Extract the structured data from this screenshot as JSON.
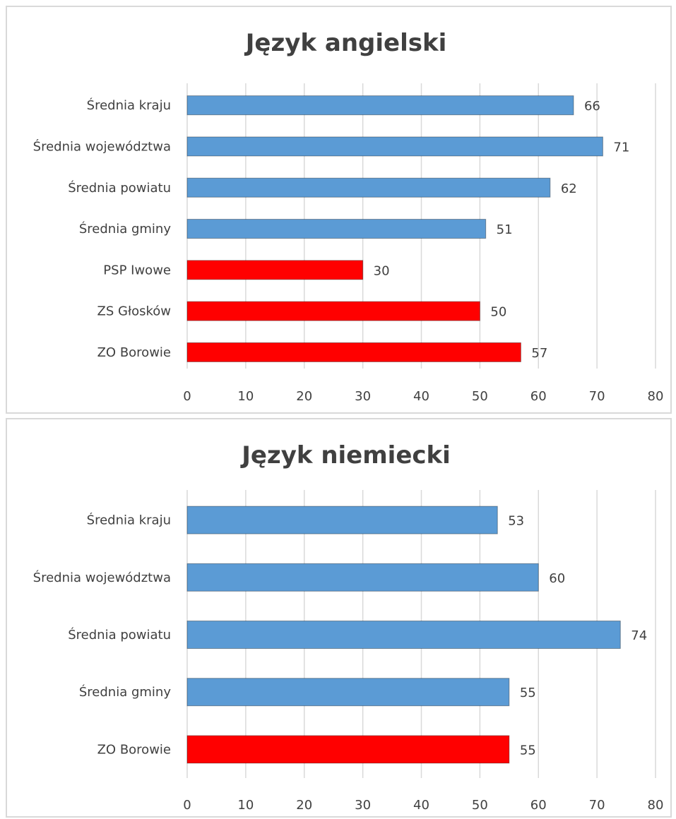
{
  "chart_data": [
    {
      "type": "bar",
      "orientation": "horizontal",
      "title": "Język angielski",
      "categories": [
        "Średnia kraju",
        "Średnia województwa",
        "Średnia powiatu",
        "Średnia gminy",
        "PSP Iwowe",
        "ZS Głosków",
        "ZO Borowie"
      ],
      "values": [
        66,
        71,
        62,
        51,
        30,
        50,
        57
      ],
      "value_labels": [
        "66",
        "71",
        "62",
        "51",
        "30",
        "50",
        "57"
      ],
      "bar_colors": [
        "#5b9bd5",
        "#5b9bd5",
        "#5b9bd5",
        "#5b9bd5",
        "#ff0000",
        "#ff0000",
        "#ff0000"
      ],
      "xlim": [
        0,
        80
      ],
      "xticks": [
        "0",
        "10",
        "20",
        "30",
        "40",
        "50",
        "60",
        "70",
        "80"
      ],
      "grid": true
    },
    {
      "type": "bar",
      "orientation": "horizontal",
      "title": "Język niemiecki",
      "categories": [
        "Średnia kraju",
        "Średnia województwa",
        "Średnia powiatu",
        "Średnia gminy",
        "ZO Borowie"
      ],
      "values": [
        53,
        60,
        74,
        55,
        55
      ],
      "value_labels": [
        "53",
        "60",
        "74",
        "55",
        "55"
      ],
      "bar_colors": [
        "#5b9bd5",
        "#5b9bd5",
        "#5b9bd5",
        "#5b9bd5",
        "#ff0000"
      ],
      "xlim": [
        0,
        80
      ],
      "xticks": [
        "0",
        "10",
        "20",
        "30",
        "40",
        "50",
        "60",
        "70",
        "80"
      ],
      "grid": true
    }
  ]
}
